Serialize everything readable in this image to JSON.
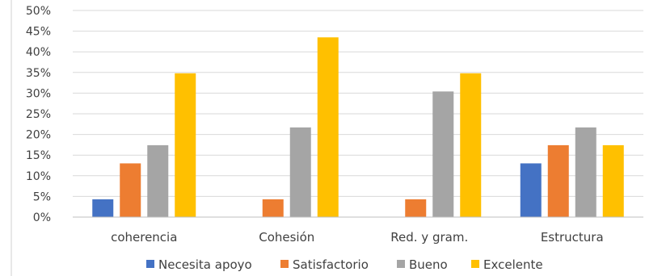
{
  "chart_data": {
    "type": "bar",
    "categories": [
      "coherencia",
      "Cohesión",
      "Red. y gram.",
      "Estructura"
    ],
    "series": [
      {
        "name": "Necesita apoyo",
        "color": "#4472C4",
        "values": [
          4.3,
          0,
          0,
          13.0
        ]
      },
      {
        "name": "Satisfactorio",
        "color": "#ED7D31",
        "values": [
          13.0,
          4.3,
          4.3,
          17.4
        ]
      },
      {
        "name": "Bueno",
        "color": "#A5A5A5",
        "values": [
          17.4,
          21.7,
          30.4,
          21.7
        ]
      },
      {
        "name": "Excelente",
        "color": "#FFC000",
        "values": [
          34.8,
          43.5,
          34.8,
          17.4
        ]
      }
    ],
    "yticks": [
      "0%",
      "5%",
      "10%",
      "15%",
      "20%",
      "25%",
      "30%",
      "35%",
      "40%",
      "45%",
      "50%"
    ],
    "ylim": [
      0,
      50
    ],
    "grid": true,
    "legend": "bottom"
  }
}
